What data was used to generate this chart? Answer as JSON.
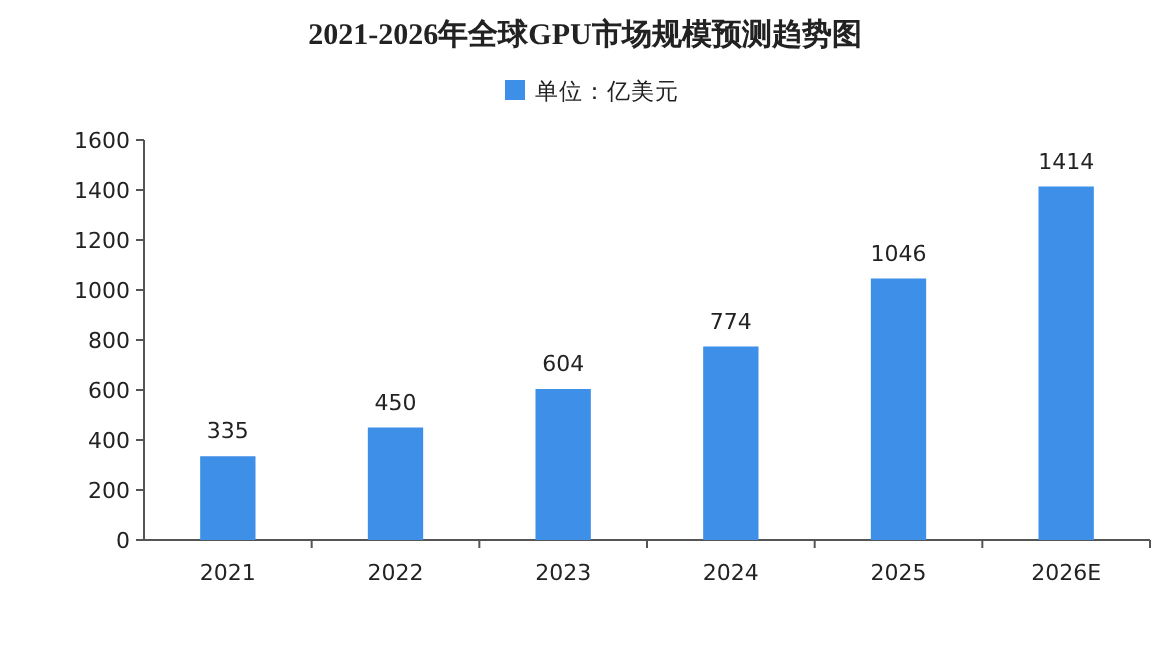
{
  "chart_data": {
    "type": "bar",
    "title": "2021-2026年全球GPU市场规模预测趋势图",
    "categories": [
      "2021",
      "2022",
      "2023",
      "2024",
      "2025",
      "2026E"
    ],
    "series": [
      {
        "name": "单位：亿美元",
        "color": "#3d8fe8",
        "values": [
          335,
          450,
          604,
          774,
          1046,
          1414
        ]
      }
    ],
    "ylim": [
      0,
      1600
    ],
    "yticks": [
      0,
      200,
      400,
      600,
      800,
      1000,
      1200,
      1400,
      1600
    ],
    "data_labels": true,
    "legend": "top",
    "grid": false
  }
}
